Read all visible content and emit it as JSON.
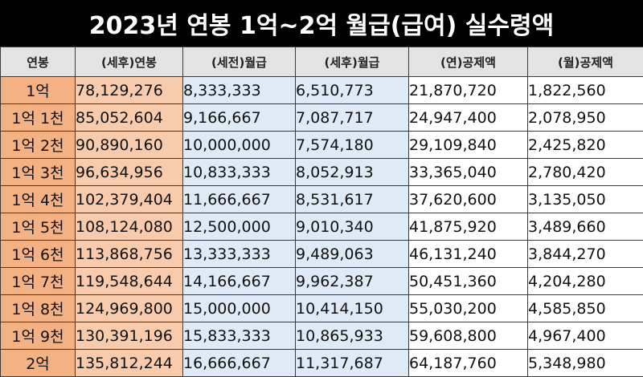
{
  "title": "2023년 연봉 1억~2억 월급(급여) 실수령액",
  "headers": [
    "연봉",
    "(세후)연봉",
    "(세전)월급",
    "(세후)월급",
    "(연)공제액",
    "(월)공제액"
  ],
  "rows": [
    {
      "label": "1억",
      "net_annual": "78,129,276",
      "gross_month": "8,333,333",
      "net_month": "6,510,773",
      "ded_year": "21,870,720",
      "ded_month": "1,822,560"
    },
    {
      "label": "1억 1천",
      "net_annual": "85,052,604",
      "gross_month": "9,166,667",
      "net_month": "7,087,717",
      "ded_year": "24,947,400",
      "ded_month": "2,078,950"
    },
    {
      "label": "1억 2천",
      "net_annual": "90,890,160",
      "gross_month": "10,000,000",
      "net_month": "7,574,180",
      "ded_year": "29,109,840",
      "ded_month": "2,425,820"
    },
    {
      "label": "1억 3천",
      "net_annual": "96,634,956",
      "gross_month": "10,833,333",
      "net_month": "8,052,913",
      "ded_year": "33,365,040",
      "ded_month": "2,780,420"
    },
    {
      "label": "1억 4천",
      "net_annual": "102,379,404",
      "gross_month": "11,666,667",
      "net_month": "8,531,617",
      "ded_year": "37,620,600",
      "ded_month": "3,135,050"
    },
    {
      "label": "1억 5천",
      "net_annual": "108,124,080",
      "gross_month": "12,500,000",
      "net_month": "9,010,340",
      "ded_year": "41,875,920",
      "ded_month": "3,489,660"
    },
    {
      "label": "1억 6천",
      "net_annual": "113,868,756",
      "gross_month": "13,333,333",
      "net_month": "9,489,063",
      "ded_year": "46,131,240",
      "ded_month": "3,844,270"
    },
    {
      "label": "1억 7천",
      "net_annual": "119,548,644",
      "gross_month": "14,166,667",
      "net_month": "9,962,387",
      "ded_year": "50,451,360",
      "ded_month": "4,204,280"
    },
    {
      "label": "1억 8천",
      "net_annual": "124,969,800",
      "gross_month": "15,000,000",
      "net_month": "10,414,150",
      "ded_year": "55,030,200",
      "ded_month": "4,585,850"
    },
    {
      "label": "1억 9천",
      "net_annual": "130,391,196",
      "gross_month": "15,833,333",
      "net_month": "10,865,933",
      "ded_year": "59,608,800",
      "ded_month": "4,967,400"
    },
    {
      "label": "2억",
      "net_annual": "135,812,244",
      "gross_month": "16,666,667",
      "net_month": "11,317,687",
      "ded_year": "64,187,760",
      "ded_month": "5,348,980"
    }
  ],
  "colors": {
    "title_bg": "#000000",
    "title_text": "#ffffff",
    "header_bg": "#e3e3e3",
    "label_col_bg": "#f4b183",
    "net_annual_col_bg": "#f8cbad",
    "monthly_cols_bg": "#deebf7",
    "deduction_cols_bg": "#ffffff",
    "grid_line": "#3a3a3a"
  }
}
